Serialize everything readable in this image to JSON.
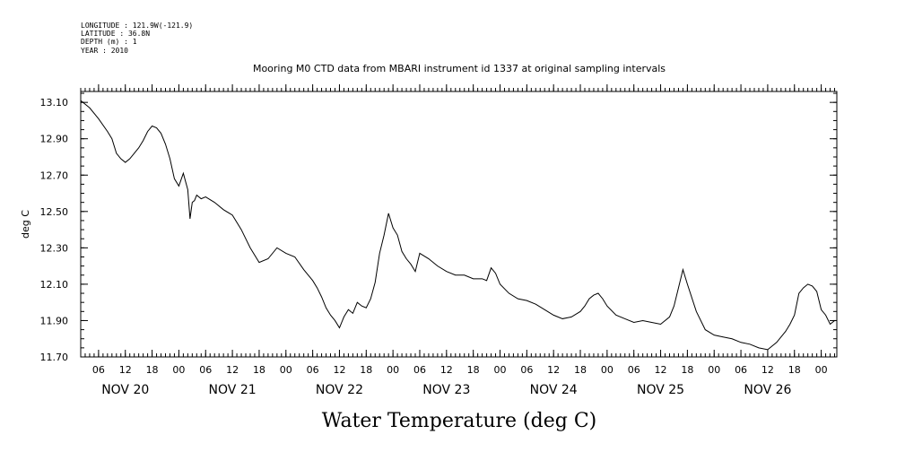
{
  "chart_data": {
    "type": "line",
    "metadata_lines": [
      "LONGITUDE : 121.9W(-121.9)",
      "LATITUDE : 36.8N",
      "DEPTH (m) : 1",
      "YEAR : 2010"
    ],
    "title": "Mooring M0 CTD data from MBARI instrument id 1337 at original sampling intervals",
    "xlabel": "Water Temperature (deg C)",
    "ylabel": "deg C",
    "ylim": [
      11.7,
      13.16
    ],
    "yticks": [
      11.7,
      11.9,
      12.1,
      12.3,
      12.5,
      12.7,
      12.9,
      13.1
    ],
    "ytick_labels": [
      "11.70",
      "11.90",
      "12.10",
      "12.30",
      "12.50",
      "12.70",
      "12.90",
      "13.10"
    ],
    "x_unit": "hours since NOV 20 00:00",
    "xlim": [
      2,
      171.5
    ],
    "xtick_hours": [
      6,
      12,
      18,
      24,
      30,
      36,
      42,
      48,
      54,
      60,
      66,
      72,
      78,
      84,
      90,
      96,
      102,
      108,
      114,
      120,
      126,
      132,
      138,
      144,
      150,
      156,
      162,
      168
    ],
    "xtick_labels": [
      "06",
      "12",
      "18",
      "00",
      "06",
      "12",
      "18",
      "00",
      "06",
      "12",
      "18",
      "00",
      "06",
      "12",
      "18",
      "00",
      "06",
      "12",
      "18",
      "00",
      "06",
      "12",
      "18",
      "00",
      "06",
      "12",
      "18",
      "00"
    ],
    "day_labels": [
      {
        "label": "NOV 20",
        "hour": 12
      },
      {
        "label": "NOV 21",
        "hour": 36
      },
      {
        "label": "NOV 22",
        "hour": 60
      },
      {
        "label": "NOV 23",
        "hour": 84
      },
      {
        "label": "NOV 24",
        "hour": 108
      },
      {
        "label": "NOV 25",
        "hour": 132
      },
      {
        "label": "NOV 26",
        "hour": 156
      }
    ],
    "grid": false,
    "series": [
      {
        "name": "",
        "x": [
          2,
          4,
          6,
          8,
          9,
          10,
          11,
          12,
          13,
          14,
          15,
          16,
          17,
          18,
          19,
          20,
          21,
          22,
          23,
          24,
          25,
          26,
          26.5,
          27,
          27.5,
          28,
          29,
          30,
          32,
          34,
          36,
          38,
          40,
          42,
          44,
          46,
          48,
          50,
          52,
          54,
          55,
          56,
          57,
          58,
          59,
          60,
          61,
          62,
          63,
          64,
          65,
          66,
          67,
          68,
          69,
          70,
          71,
          72,
          73,
          74,
          75,
          76,
          77,
          78,
          80,
          82,
          84,
          86,
          88,
          90,
          92,
          93,
          94,
          95,
          96,
          98,
          100,
          102,
          104,
          106,
          108,
          110,
          112,
          114,
          115,
          116,
          117,
          118,
          119,
          120,
          122,
          124,
          126,
          128,
          130,
          132,
          134,
          135,
          136,
          137,
          138,
          140,
          142,
          144,
          146,
          148,
          150,
          152,
          154,
          156,
          158,
          160,
          161,
          162,
          163,
          164,
          165,
          166,
          167,
          168,
          169,
          170,
          171
        ],
        "y": [
          13.11,
          13.07,
          13.01,
          12.94,
          12.9,
          12.82,
          12.79,
          12.77,
          12.79,
          12.82,
          12.85,
          12.89,
          12.94,
          12.97,
          12.96,
          12.93,
          12.87,
          12.79,
          12.68,
          12.64,
          12.71,
          12.62,
          12.46,
          12.55,
          12.56,
          12.59,
          12.57,
          12.58,
          12.55,
          12.51,
          12.48,
          12.4,
          12.3,
          12.22,
          12.24,
          12.3,
          12.27,
          12.25,
          12.18,
          12.12,
          12.08,
          12.03,
          11.97,
          11.93,
          11.9,
          11.86,
          11.92,
          11.96,
          11.94,
          12.0,
          11.98,
          11.97,
          12.02,
          12.11,
          12.27,
          12.37,
          12.49,
          12.41,
          12.37,
          12.28,
          12.24,
          12.21,
          12.17,
          12.27,
          12.24,
          12.2,
          12.17,
          12.15,
          12.15,
          12.13,
          12.13,
          12.12,
          12.19,
          12.16,
          12.1,
          12.05,
          12.02,
          12.01,
          11.99,
          11.96,
          11.93,
          11.91,
          11.92,
          11.95,
          11.98,
          12.02,
          12.04,
          12.05,
          12.02,
          11.98,
          11.93,
          11.91,
          11.89,
          11.9,
          11.89,
          11.88,
          11.92,
          11.98,
          12.08,
          12.18,
          12.1,
          11.95,
          11.85,
          11.82,
          11.81,
          11.8,
          11.78,
          11.77,
          11.75,
          11.74,
          11.78,
          11.84,
          11.88,
          11.93,
          12.05,
          12.08,
          12.1,
          12.09,
          12.06,
          11.96,
          11.93,
          11.88,
          11.9
        ]
      }
    ]
  }
}
